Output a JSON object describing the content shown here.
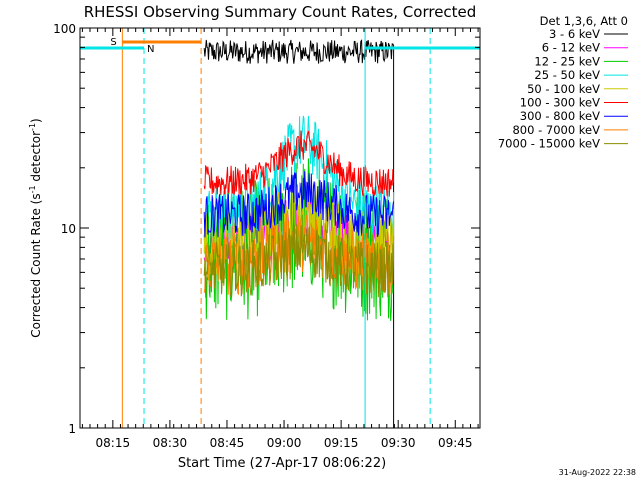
{
  "chart_data": {
    "type": "line",
    "title": "RHESSI Observing Summary Count Rates, Corrected",
    "xlabel": "Start Time (27-Apr-17 08:06:22)",
    "ylabel": "Corrected Count Rate (s⁻¹ detector⁻¹)",
    "ylabel_parts": [
      "Corrected Count Rate (s",
      "-1",
      " detector",
      "-1",
      ")"
    ],
    "yscale": "log",
    "ylim": [
      1,
      100
    ],
    "ytick_values": [
      1,
      10,
      100
    ],
    "ytick_labels": [
      "1",
      "10",
      "100"
    ],
    "xlim_minutes": [
      486.37,
      591.5
    ],
    "xtick_values": [
      495,
      510,
      525,
      540,
      555,
      570,
      585
    ],
    "xtick_labels": [
      "08:15",
      "08:30",
      "08:45",
      "09:00",
      "09:15",
      "09:30",
      "09:45"
    ],
    "data_start_min": 519,
    "data_end_min": 568.8,
    "legend_title": "Det 1,3,6, Att 0",
    "legend_position": "right",
    "series": [
      {
        "name": "3 - 6 keV",
        "color": "#000000",
        "base": 76,
        "bump": 0.0,
        "noise": 0.06
      },
      {
        "name": "6 - 12 keV",
        "color": "#ff00ff",
        "base": 8.5,
        "bump": 0.12,
        "noise": 0.14
      },
      {
        "name": "12 - 25 keV",
        "color": "#00cc00",
        "base": 7.5,
        "bump": 0.15,
        "noise": 0.35
      },
      {
        "name": "25 - 50 keV",
        "color": "#00e5e5",
        "base": 12.0,
        "bump": 0.35,
        "noise": 0.15
      },
      {
        "name": "50 - 100 keV",
        "color": "#cccc00",
        "base": 8.3,
        "bump": 0.16,
        "noise": 0.18
      },
      {
        "name": "100 - 300 keV",
        "color": "#ff0000",
        "base": 17.0,
        "bump": 0.18,
        "noise": 0.08
      },
      {
        "name": "300 - 800 keV",
        "color": "#0000ff",
        "base": 11.5,
        "bump": 0.12,
        "noise": 0.11
      },
      {
        "name": "800 - 7000 keV",
        "color": "#ff7f00",
        "base": 6.6,
        "bump": 0.12,
        "noise": 0.16
      },
      {
        "name": "7000 - 15000 keV",
        "color": "#8c8c00",
        "base": 6.2,
        "bump": 0.1,
        "noise": 0.14
      }
    ],
    "flags": {
      "saa": {
        "label": "S",
        "color": "#ff7f00",
        "start_min": 497.5,
        "end_min": 518.2
      },
      "night": [
        {
          "label": "N",
          "color": "#00e5e5",
          "start_min": 486.37,
          "end_min": 503.2
        },
        {
          "label": "",
          "color": "#00e5e5",
          "start_min": 561.3,
          "end_min": 591.5
        }
      ]
    },
    "markers": [
      {
        "min": 497.5,
        "color": "#ff7f00",
        "style": "solid"
      },
      {
        "min": 503.2,
        "color": "#00e5e5",
        "style": "dashed"
      },
      {
        "min": 518.2,
        "color": "#ff7f00",
        "style": "dashed"
      },
      {
        "min": 561.3,
        "color": "#00e5e5",
        "style": "solid"
      },
      {
        "min": 578.4,
        "color": "#00e5e5",
        "style": "dashed"
      }
    ],
    "grid": false
  },
  "timestamp": "31-Aug-2022 22:38"
}
